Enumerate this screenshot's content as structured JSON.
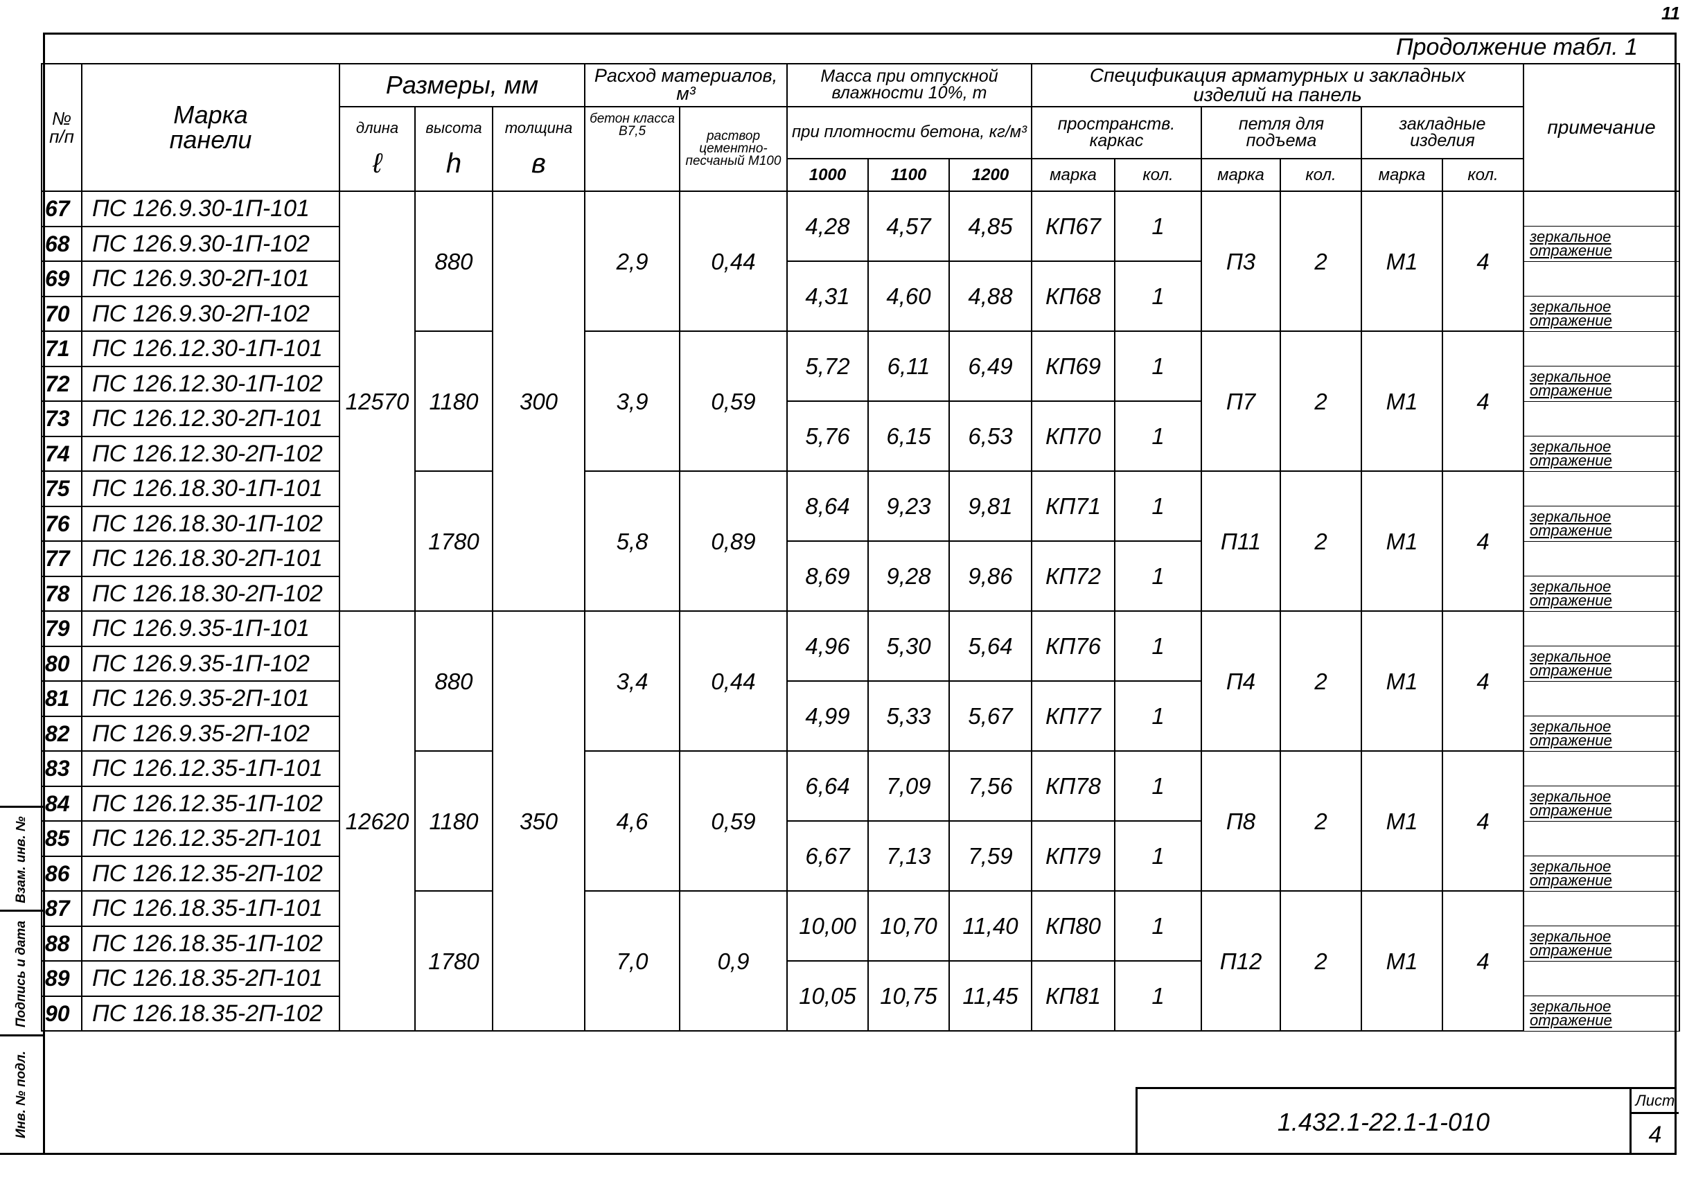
{
  "page_number": "11",
  "continuation": "Продолжение   табл. 1",
  "header": {
    "no": "№ п/п",
    "mark": "Марка панели",
    "sizes": "Размеры, мм",
    "length": "длина",
    "length_sym": "ℓ",
    "height": "высота",
    "height_sym": "h",
    "thickness": "толщина",
    "thickness_sym": "в",
    "materials": "Расход материалов, м³",
    "concrete": "бетон класса В7,5",
    "mortar": "раствор цементно-песчаный М100",
    "mass": "Масса при отпускной влажности 10%, т",
    "density": "при плотности бетона, кг/м³",
    "d1000": "1000",
    "d1100": "1100",
    "d1200": "1200",
    "spec": "Спецификация арматурных и закладных изделий на панель",
    "frame": "пространств. каркас",
    "loop": "петля для подъема",
    "embedded": "закладные изделия",
    "brand": "марка",
    "qty": "кол.",
    "note": "примечание"
  },
  "rows": [
    {
      "no": "67",
      "mark": "ПС 126.9.30-1П-101",
      "note": ""
    },
    {
      "no": "68",
      "mark": "ПС 126.9.30-1П-102",
      "note": "зеркальное отражение"
    },
    {
      "no": "69",
      "mark": "ПС 126.9.30-2П-101",
      "note": ""
    },
    {
      "no": "70",
      "mark": "ПС 126.9.30-2П-102",
      "note": "зеркальное отражение"
    },
    {
      "no": "71",
      "mark": "ПС 126.12.30-1П-101",
      "note": ""
    },
    {
      "no": "72",
      "mark": "ПС 126.12.30-1П-102",
      "note": "зеркальное отражение"
    },
    {
      "no": "73",
      "mark": "ПС 126.12.30-2П-101",
      "note": ""
    },
    {
      "no": "74",
      "mark": "ПС 126.12.30-2П-102",
      "note": "зеркальное отражение"
    },
    {
      "no": "75",
      "mark": "ПС 126.18.30-1П-101",
      "note": ""
    },
    {
      "no": "76",
      "mark": "ПС 126.18.30-1П-102",
      "note": "зеркальное отражение"
    },
    {
      "no": "77",
      "mark": "ПС 126.18.30-2П-101",
      "note": ""
    },
    {
      "no": "78",
      "mark": "ПС 126.18.30-2П-102",
      "note": "зеркальное отражение"
    },
    {
      "no": "79",
      "mark": "ПС 126.9.35-1П-101",
      "note": ""
    },
    {
      "no": "80",
      "mark": "ПС 126.9.35-1П-102",
      "note": "зеркальное отражение"
    },
    {
      "no": "81",
      "mark": "ПС 126.9.35-2П-101",
      "note": ""
    },
    {
      "no": "82",
      "mark": "ПС 126.9.35-2П-102",
      "note": "зеркальное отражение"
    },
    {
      "no": "83",
      "mark": "ПС 126.12.35-1П-101",
      "note": ""
    },
    {
      "no": "84",
      "mark": "ПС 126.12.35-1П-102",
      "note": "зеркальное отражение"
    },
    {
      "no": "85",
      "mark": "ПС 126.12.35-2П-101",
      "note": ""
    },
    {
      "no": "86",
      "mark": "ПС 126.12.35-2П-102",
      "note": "зеркальное отражение"
    },
    {
      "no": "87",
      "mark": "ПС 126.18.35-1П-101",
      "note": ""
    },
    {
      "no": "88",
      "mark": "ПС 126.18.35-1П-102",
      "note": "зеркальное отражение"
    },
    {
      "no": "89",
      "mark": "ПС 126.18.35-2П-101",
      "note": ""
    },
    {
      "no": "90",
      "mark": "ПС 126.18.35-2П-102",
      "note": "зеркальное отражение"
    }
  ],
  "length_groups": [
    {
      "length": "12570",
      "thickness": "300"
    },
    {
      "length": "12620",
      "thickness": "350"
    }
  ],
  "blocks": [
    {
      "height": "880",
      "concrete": "2,9",
      "mortar": "0,44",
      "loop": "П3",
      "loop_qty": "2",
      "emb": "М1",
      "emb_qty": "4"
    },
    {
      "height": "1180",
      "concrete": "3,9",
      "mortar": "0,59",
      "loop": "П7",
      "loop_qty": "2",
      "emb": "М1",
      "emb_qty": "4"
    },
    {
      "height": "1780",
      "concrete": "5,8",
      "mortar": "0,89",
      "loop": "П11",
      "loop_qty": "2",
      "emb": "М1",
      "emb_qty": "4"
    },
    {
      "height": "880",
      "concrete": "3,4",
      "mortar": "0,44",
      "loop": "П4",
      "loop_qty": "2",
      "emb": "М1",
      "emb_qty": "4"
    },
    {
      "height": "1180",
      "concrete": "4,6",
      "mortar": "0,59",
      "loop": "П8",
      "loop_qty": "2",
      "emb": "М1",
      "emb_qty": "4"
    },
    {
      "height": "1780",
      "concrete": "7,0",
      "mortar": "0,9",
      "loop": "П12",
      "loop_qty": "2",
      "emb": "М1",
      "emb_qty": "4"
    }
  ],
  "pairs": [
    {
      "m1000": "4,28",
      "m1100": "4,57",
      "m1200": "4,85",
      "frame": "КП67",
      "frame_qty": "1"
    },
    {
      "m1000": "4,31",
      "m1100": "4,60",
      "m1200": "4,88",
      "frame": "КП68",
      "frame_qty": "1"
    },
    {
      "m1000": "5,72",
      "m1100": "6,11",
      "m1200": "6,49",
      "frame": "КП69",
      "frame_qty": "1"
    },
    {
      "m1000": "5,76",
      "m1100": "6,15",
      "m1200": "6,53",
      "frame": "КП70",
      "frame_qty": "1"
    },
    {
      "m1000": "8,64",
      "m1100": "9,23",
      "m1200": "9,81",
      "frame": "КП71",
      "frame_qty": "1"
    },
    {
      "m1000": "8,69",
      "m1100": "9,28",
      "m1200": "9,86",
      "frame": "КП72",
      "frame_qty": "1"
    },
    {
      "m1000": "4,96",
      "m1100": "5,30",
      "m1200": "5,64",
      "frame": "КП76",
      "frame_qty": "1"
    },
    {
      "m1000": "4,99",
      "m1100": "5,33",
      "m1200": "5,67",
      "frame": "КП77",
      "frame_qty": "1"
    },
    {
      "m1000": "6,64",
      "m1100": "7,09",
      "m1200": "7,56",
      "frame": "КП78",
      "frame_qty": "1"
    },
    {
      "m1000": "6,67",
      "m1100": "7,13",
      "m1200": "7,59",
      "frame": "КП79",
      "frame_qty": "1"
    },
    {
      "m1000": "10,00",
      "m1100": "10,70",
      "m1200": "11,40",
      "frame": "КП80",
      "frame_qty": "1"
    },
    {
      "m1000": "10,05",
      "m1100": "10,75",
      "m1200": "11,45",
      "frame": "КП81",
      "frame_qty": "1"
    }
  ],
  "title_block": {
    "code": "1.432.1-22.1-1-010",
    "sheet_label": "Лист",
    "sheet_number": "4"
  },
  "side_stamp": {
    "inv_orig": "Инв. № подл.",
    "signature_date": "Подпись и дата",
    "replaced_inv": "Взам. инв. №"
  }
}
